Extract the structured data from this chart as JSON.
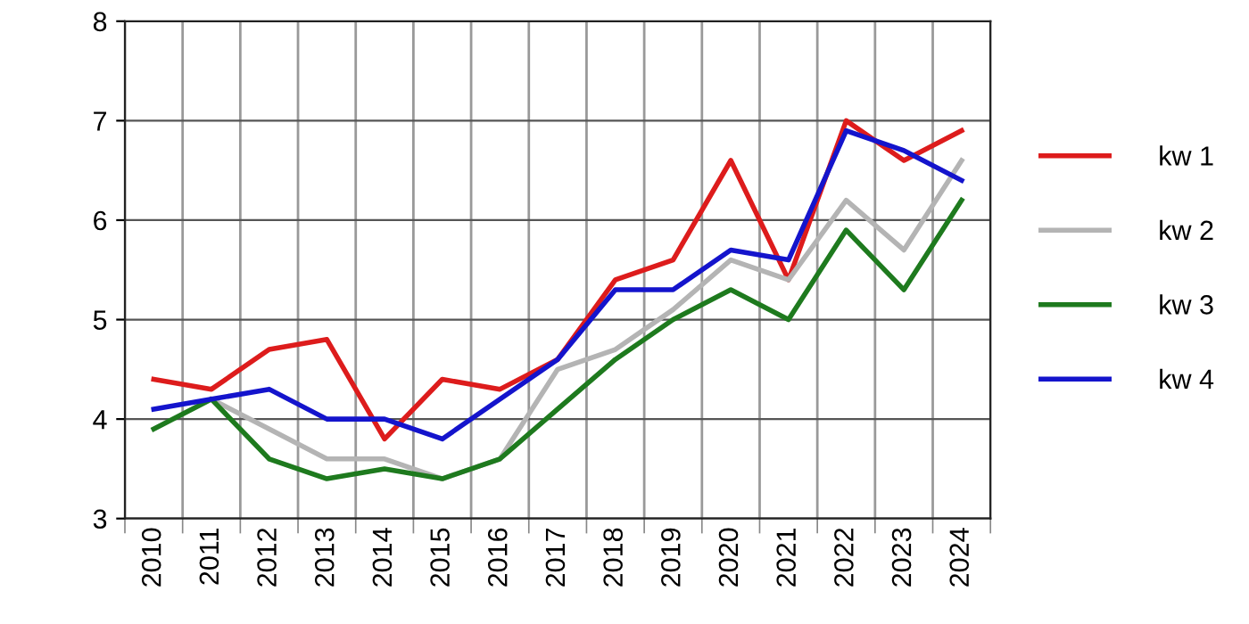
{
  "chart_data": {
    "type": "line",
    "categories": [
      "2010",
      "2011",
      "2012",
      "2013",
      "2014",
      "2015",
      "2016",
      "2017",
      "2018",
      "2019",
      "2020",
      "2021",
      "2022",
      "2023",
      "2024"
    ],
    "series": [
      {
        "name": "kw 1",
        "color": "#dd1c1c",
        "values": [
          4.4,
          4.3,
          4.7,
          4.8,
          3.8,
          4.4,
          4.3,
          4.6,
          5.4,
          5.6,
          6.6,
          5.4,
          7.0,
          6.6,
          6.9
        ]
      },
      {
        "name": "kw 2",
        "color": "#b4b4b4",
        "values": [
          null,
          4.2,
          3.9,
          3.6,
          3.6,
          3.4,
          3.6,
          4.5,
          4.7,
          5.1,
          5.6,
          5.4,
          6.2,
          5.7,
          6.6
        ]
      },
      {
        "name": "kw 3",
        "color": "#1e7a1e",
        "values": [
          3.9,
          4.2,
          3.6,
          3.4,
          3.5,
          3.4,
          3.6,
          4.1,
          4.6,
          5.0,
          5.3,
          5.0,
          5.9,
          5.3,
          6.2
        ]
      },
      {
        "name": "kw 4",
        "color": "#1414cc",
        "values": [
          4.1,
          4.2,
          4.3,
          4.0,
          4.0,
          3.8,
          4.2,
          4.6,
          5.3,
          5.3,
          5.7,
          5.6,
          6.9,
          6.7,
          6.4
        ]
      }
    ],
    "ylim": [
      3,
      8
    ],
    "yticks": [
      3,
      4,
      5,
      6,
      7,
      8
    ],
    "grid": true,
    "legend": "right",
    "marker": "none",
    "line_style": "solid"
  }
}
